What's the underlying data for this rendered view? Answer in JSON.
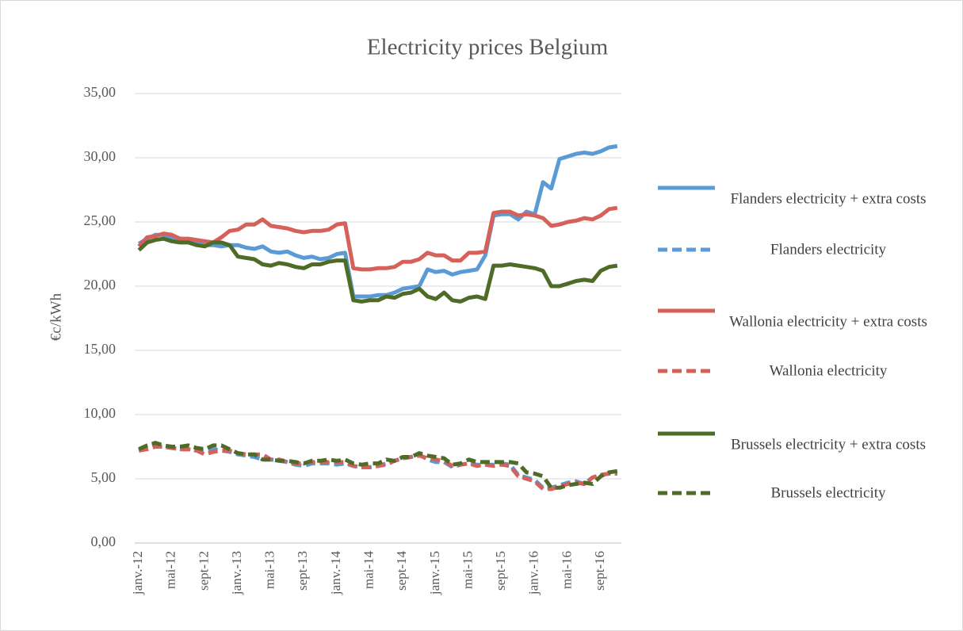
{
  "chart_data": {
    "type": "line",
    "title": "Electricity prices Belgium",
    "y_label": "€c/kWh",
    "categories": [
      "janv.-12",
      null,
      null,
      null,
      "mai-12",
      null,
      null,
      null,
      "sept-12",
      null,
      null,
      null,
      "janv.-13",
      null,
      null,
      null,
      "mai-13",
      null,
      null,
      null,
      "sept-13",
      null,
      null,
      null,
      "janv.-14",
      null,
      null,
      null,
      "mai-14",
      null,
      null,
      null,
      "sept-14",
      null,
      null,
      null,
      "janv.-15",
      null,
      null,
      null,
      "mai-15",
      null,
      null,
      null,
      "sept-15",
      null,
      null,
      null,
      "janv.-16",
      null,
      null,
      null,
      "mai-16",
      null,
      null,
      null,
      "sept-16",
      null,
      null
    ],
    "ylim": [
      0,
      35
    ],
    "yticks": [
      {
        "value": 0,
        "label": "0,00"
      },
      {
        "value": 5,
        "label": "5,00"
      },
      {
        "value": 10,
        "label": "10,00"
      },
      {
        "value": 15,
        "label": "15,00"
      },
      {
        "value": 20,
        "label": "20,00"
      },
      {
        "value": 25,
        "label": "25,00"
      },
      {
        "value": 30,
        "label": "30,00"
      },
      {
        "value": 35,
        "label": "35,00"
      }
    ],
    "grid": true,
    "series": [
      {
        "name": "Flanders electricity + extra costs",
        "color": "#5b9bd5",
        "dashed": false,
        "values": [
          23.3,
          23.7,
          24.0,
          24.0,
          23.7,
          23.5,
          23.4,
          23.3,
          23.2,
          23.2,
          23.1,
          23.2,
          23.2,
          23.0,
          22.9,
          23.1,
          22.7,
          22.6,
          22.7,
          22.4,
          22.2,
          22.3,
          22.1,
          22.2,
          22.5,
          22.6,
          19.2,
          19.2,
          19.2,
          19.3,
          19.3,
          19.5,
          19.8,
          19.9,
          20.0,
          21.3,
          21.1,
          21.2,
          20.9,
          21.1,
          21.2,
          21.3,
          22.4,
          25.5,
          25.6,
          25.6,
          25.2,
          25.8,
          25.6,
          28.1,
          27.6,
          29.9,
          30.1,
          30.3,
          30.4,
          30.3,
          30.5,
          30.8,
          30.9
        ]
      },
      {
        "name": "Flanders electricity",
        "color": "#5b9bd5",
        "dashed": true,
        "values": [
          7.2,
          7.5,
          7.7,
          7.5,
          7.4,
          7.3,
          7.3,
          7.2,
          7.2,
          7.3,
          7.2,
          7.1,
          6.9,
          6.8,
          6.7,
          6.5,
          6.5,
          6.4,
          6.3,
          6.1,
          6.0,
          6.2,
          6.2,
          6.2,
          6.1,
          6.2,
          6.0,
          5.9,
          5.9,
          6.0,
          6.2,
          6.4,
          6.6,
          6.7,
          6.9,
          6.5,
          6.3,
          6.3,
          5.9,
          6.1,
          6.2,
          6.1,
          6.1,
          6.1,
          6.2,
          6.1,
          5.3,
          5.1,
          4.9,
          4.3,
          4.3,
          4.5,
          4.7,
          4.8,
          4.6,
          5.1,
          5.3,
          5.4,
          5.4
        ]
      },
      {
        "name": "Wallonia electricity + extra costs",
        "color": "#d6605a",
        "dashed": false,
        "values": [
          23.1,
          23.8,
          23.9,
          24.1,
          24.0,
          23.7,
          23.7,
          23.6,
          23.5,
          23.4,
          23.8,
          24.3,
          24.4,
          24.8,
          24.8,
          25.2,
          24.7,
          24.6,
          24.5,
          24.3,
          24.2,
          24.3,
          24.3,
          24.4,
          24.8,
          24.9,
          21.4,
          21.3,
          21.3,
          21.4,
          21.4,
          21.5,
          21.9,
          21.9,
          22.1,
          22.6,
          22.4,
          22.4,
          22.0,
          22.0,
          22.6,
          22.6,
          22.7,
          25.7,
          25.8,
          25.8,
          25.5,
          25.6,
          25.5,
          25.3,
          24.7,
          24.8,
          25.0,
          25.1,
          25.3,
          25.2,
          25.5,
          26.0,
          26.1
        ]
      },
      {
        "name": "Wallonia electricity",
        "color": "#d6605a",
        "dashed": true,
        "values": [
          7.2,
          7.3,
          7.5,
          7.5,
          7.4,
          7.3,
          7.3,
          7.2,
          6.9,
          7.1,
          7.2,
          7.2,
          7.0,
          6.9,
          6.9,
          6.9,
          6.5,
          6.5,
          6.3,
          6.2,
          6.2,
          6.3,
          6.3,
          6.3,
          6.3,
          6.3,
          6.0,
          5.9,
          5.9,
          6.0,
          6.1,
          6.4,
          6.6,
          6.7,
          6.8,
          6.6,
          6.5,
          6.4,
          6.0,
          6.1,
          6.2,
          6.0,
          6.1,
          6.0,
          6.1,
          6.0,
          5.2,
          5.0,
          4.8,
          4.2,
          4.2,
          4.4,
          4.6,
          4.7,
          4.6,
          5.1,
          5.3,
          5.4,
          5.4
        ]
      },
      {
        "name": "Brussels electricity + extra costs",
        "color": "#4f6b28",
        "dashed": false,
        "values": [
          22.8,
          23.4,
          23.6,
          23.7,
          23.5,
          23.4,
          23.4,
          23.2,
          23.1,
          23.4,
          23.4,
          23.2,
          22.3,
          22.2,
          22.1,
          21.7,
          21.6,
          21.8,
          21.7,
          21.5,
          21.4,
          21.7,
          21.7,
          21.9,
          22.0,
          22.0,
          18.9,
          18.8,
          18.9,
          18.9,
          19.2,
          19.1,
          19.4,
          19.5,
          19.8,
          19.2,
          19.0,
          19.5,
          18.9,
          18.8,
          19.1,
          19.2,
          19.0,
          21.6,
          21.6,
          21.7,
          21.6,
          21.5,
          21.4,
          21.2,
          20.0,
          20.0,
          20.2,
          20.4,
          20.5,
          20.4,
          21.2,
          21.5,
          21.6
        ]
      },
      {
        "name": "Brussels electricity",
        "color": "#4f6b28",
        "dashed": true,
        "values": [
          7.3,
          7.6,
          7.8,
          7.6,
          7.5,
          7.5,
          7.6,
          7.4,
          7.3,
          7.6,
          7.6,
          7.3,
          7.0,
          6.9,
          6.9,
          6.5,
          6.5,
          6.4,
          6.4,
          6.3,
          6.2,
          6.4,
          6.4,
          6.5,
          6.4,
          6.5,
          6.2,
          6.1,
          6.2,
          6.2,
          6.5,
          6.4,
          6.7,
          6.7,
          7.0,
          6.8,
          6.7,
          6.6,
          6.1,
          6.2,
          6.5,
          6.3,
          6.3,
          6.3,
          6.3,
          6.3,
          6.2,
          5.5,
          5.4,
          5.2,
          4.3,
          4.3,
          4.5,
          4.6,
          4.7,
          4.6,
          5.2,
          5.5,
          5.6
        ]
      }
    ]
  }
}
